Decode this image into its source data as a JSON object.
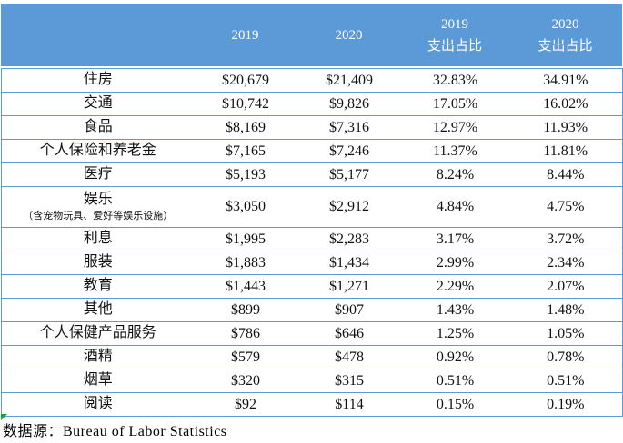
{
  "chart_data": {
    "type": "table",
    "title": "",
    "categories": [
      "住房",
      "交通",
      "食品",
      "个人保险和养老金",
      "医疗",
      "娱乐（含宠物玩具、爱好等娱乐设施）",
      "利息",
      "服装",
      "教育",
      "其他",
      "个人保健产品服务",
      "酒精",
      "烟草",
      "阅读"
    ],
    "series": [
      {
        "name": "2019",
        "values": [
          20679,
          10742,
          8169,
          7165,
          5193,
          3050,
          1995,
          1883,
          1443,
          899,
          786,
          579,
          320,
          92
        ]
      },
      {
        "name": "2020",
        "values": [
          21409,
          9826,
          7316,
          7246,
          5177,
          2912,
          2283,
          1434,
          1271,
          907,
          646,
          478,
          315,
          114
        ]
      },
      {
        "name": "2019 支出占比 (%)",
        "values": [
          32.83,
          17.05,
          12.97,
          11.37,
          8.24,
          4.84,
          3.17,
          2.99,
          2.29,
          1.43,
          1.25,
          0.92,
          0.51,
          0.15
        ]
      },
      {
        "name": "2020 支出占比 (%)",
        "values": [
          34.91,
          16.02,
          11.93,
          11.81,
          8.44,
          4.75,
          3.72,
          2.34,
          2.07,
          1.48,
          1.05,
          0.78,
          0.51,
          0.19
        ]
      }
    ],
    "source": "Bureau of Labor Statistics"
  },
  "table": {
    "colors": {
      "header_bg": "#5b9ad6",
      "border": "#5b9ad6",
      "marker_green": "#1f9d3a",
      "header_text": "#ffffff"
    },
    "header": {
      "col_category": "",
      "col_2019": "2019",
      "col_2020": "2020",
      "col_2019_share_line1": "2019",
      "col_2019_share_line2": "支出占比",
      "col_2020_share_line1": "2020",
      "col_2020_share_line2": "支出占比"
    },
    "rows": [
      {
        "label": "住房",
        "note": "",
        "values": [
          "$20,679",
          "$21,409",
          "32.83%",
          "34.91%"
        ]
      },
      {
        "label": "交通",
        "note": "",
        "values": [
          "$10,742",
          "$9,826",
          "17.05%",
          "16.02%"
        ]
      },
      {
        "label": "食品",
        "note": "",
        "values": [
          "$8,169",
          "$7,316",
          "12.97%",
          "11.93%"
        ]
      },
      {
        "label": "个人保险和养老金",
        "note": "",
        "values": [
          "$7,165",
          "$7,246",
          "11.37%",
          "11.81%"
        ]
      },
      {
        "label": "医疗",
        "note": "",
        "values": [
          "$5,193",
          "$5,177",
          "8.24%",
          "8.44%"
        ]
      },
      {
        "label": "娱乐",
        "note": "（含宠物玩具、爱好等娱乐设施）",
        "values": [
          "$3,050",
          "$2,912",
          "4.84%",
          "4.75%"
        ]
      },
      {
        "label": "利息",
        "note": "",
        "values": [
          "$1,995",
          "$2,283",
          "3.17%",
          "3.72%"
        ]
      },
      {
        "label": "服装",
        "note": "",
        "values": [
          "$1,883",
          "$1,434",
          "2.99%",
          "2.34%"
        ]
      },
      {
        "label": "教育",
        "note": "",
        "values": [
          "$1,443",
          "$1,271",
          "2.29%",
          "2.07%"
        ]
      },
      {
        "label": "其他",
        "note": "",
        "values": [
          "$899",
          "$907",
          "1.43%",
          "1.48%"
        ]
      },
      {
        "label": "个人保健产品服务",
        "note": "",
        "values": [
          "$786",
          "$646",
          "1.25%",
          "1.05%"
        ]
      },
      {
        "label": "酒精",
        "note": "",
        "values": [
          "$579",
          "$478",
          "0.92%",
          "0.78%"
        ]
      },
      {
        "label": "烟草",
        "note": "",
        "values": [
          "$320",
          "$315",
          "0.51%",
          "0.51%"
        ]
      },
      {
        "label": "阅读",
        "note": "",
        "values": [
          "$92",
          "$114",
          "0.15%",
          "0.19%"
        ]
      }
    ]
  },
  "footer": {
    "source_label": "数据源：Bureau of Labor Statistics"
  }
}
